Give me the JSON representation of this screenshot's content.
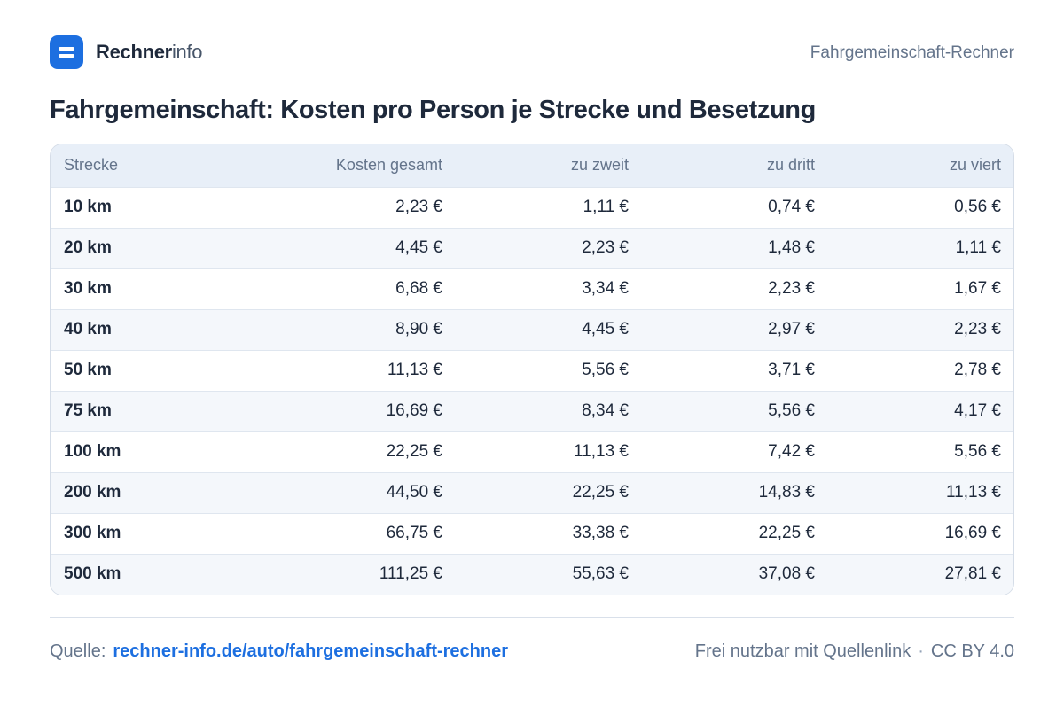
{
  "brand": {
    "name_bold": "Rechner",
    "name_light": "info",
    "section_label": "Fahrgemeinschaft-Rechner",
    "accent_color": "#1d6fe0"
  },
  "title": "Fahrgemeinschaft: Kosten pro Person je Strecke und Besetzung",
  "table": {
    "headers": [
      "Strecke",
      "Kosten gesamt",
      "zu zweit",
      "zu dritt",
      "zu viert"
    ],
    "rows": [
      [
        "10 km",
        "2,23 €",
        "1,11 €",
        "0,74 €",
        "0,56 €"
      ],
      [
        "20 km",
        "4,45 €",
        "2,23 €",
        "1,48 €",
        "1,11 €"
      ],
      [
        "30 km",
        "6,68 €",
        "3,34 €",
        "2,23 €",
        "1,67 €"
      ],
      [
        "40 km",
        "8,90 €",
        "4,45 €",
        "2,97 €",
        "2,23 €"
      ],
      [
        "50 km",
        "11,13 €",
        "5,56 €",
        "3,71 €",
        "2,78 €"
      ],
      [
        "75 km",
        "16,69 €",
        "8,34 €",
        "5,56 €",
        "4,17 €"
      ],
      [
        "100 km",
        "22,25 €",
        "11,13 €",
        "7,42 €",
        "5,56 €"
      ],
      [
        "200 km",
        "44,50 €",
        "22,25 €",
        "14,83 €",
        "11,13 €"
      ],
      [
        "300 km",
        "66,75 €",
        "33,38 €",
        "22,25 €",
        "16,69 €"
      ],
      [
        "500 km",
        "111,25 €",
        "55,63 €",
        "37,08 €",
        "27,81 €"
      ]
    ]
  },
  "footer": {
    "source_label": "Quelle:",
    "source_link": "rechner-info.de/auto/fahrgemeinschaft-rechner",
    "license_text": "Frei nutzbar mit Quellenlink",
    "separator": "·",
    "license": "CC BY 4.0"
  }
}
